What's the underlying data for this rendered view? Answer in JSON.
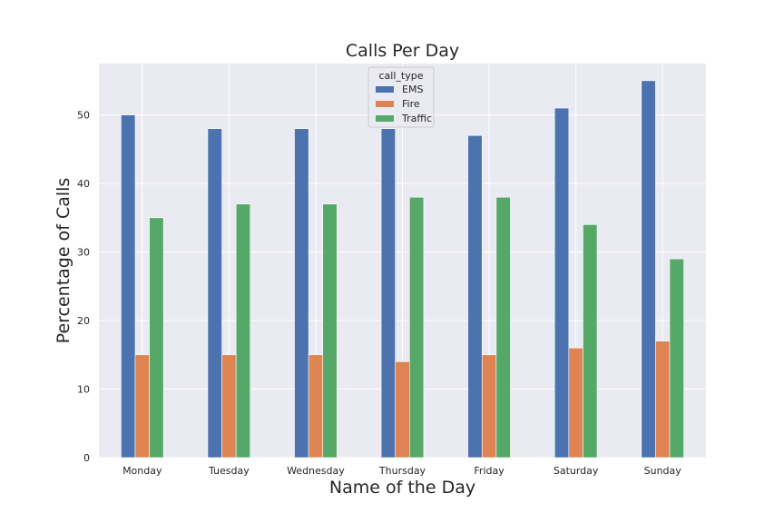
{
  "chart_data": {
    "type": "bar",
    "title": "Calls Per Day",
    "xlabel": "Name of the Day",
    "ylabel": "Percentage of Calls",
    "categories": [
      "Monday",
      "Tuesday",
      "Wednesday",
      "Thursday",
      "Friday",
      "Saturday",
      "Sunday"
    ],
    "series": [
      {
        "name": "EMS",
        "color": "#4c72b0",
        "values": [
          50,
          48,
          48,
          48,
          47,
          51,
          55
        ]
      },
      {
        "name": "Fire",
        "color": "#dd8452",
        "values": [
          15,
          15,
          15,
          14,
          15,
          16,
          17
        ]
      },
      {
        "name": "Traffic",
        "color": "#55a868",
        "values": [
          35,
          37,
          37,
          38,
          38,
          34,
          29
        ]
      }
    ],
    "ylim": [
      0,
      57.5
    ],
    "yticks": [
      0,
      10,
      20,
      30,
      40,
      50
    ],
    "grid": true,
    "legend": {
      "title": "call_type",
      "placement": "top-center"
    },
    "background": "#eaeaf2"
  }
}
